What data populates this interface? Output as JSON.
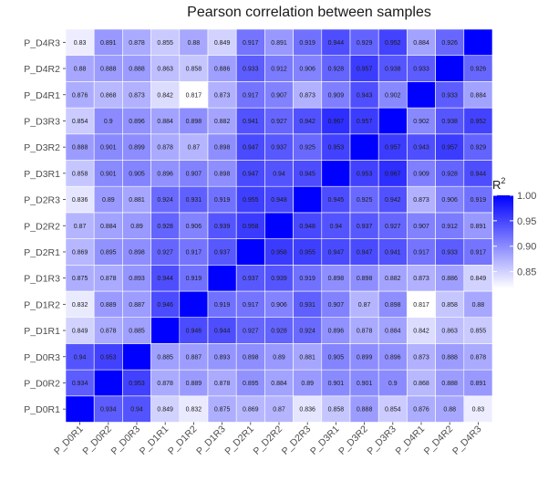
{
  "chart_data": {
    "type": "heatmap",
    "title": "Pearson correlation between samples",
    "samples": [
      "P_D0R1",
      "P_D0R2",
      "P_D0R3",
      "P_D1R1",
      "P_D1R2",
      "P_D1R3",
      "P_D2R1",
      "P_D2R2",
      "P_D2R3",
      "P_D3R1",
      "P_D3R2",
      "P_D3R3",
      "P_D4R1",
      "P_D4R2",
      "P_D4R3"
    ],
    "matrix": [
      [
        1,
        0.934,
        0.94,
        0.849,
        0.832,
        0.875,
        0.869,
        0.87,
        0.836,
        0.858,
        0.888,
        0.854,
        0.876,
        0.88,
        0.83
      ],
      [
        0.934,
        1,
        0.953,
        0.878,
        0.889,
        0.878,
        0.895,
        0.884,
        0.89,
        0.901,
        0.901,
        0.9,
        0.868,
        0.888,
        0.891
      ],
      [
        0.94,
        0.953,
        1,
        0.885,
        0.887,
        0.893,
        0.898,
        0.89,
        0.881,
        0.905,
        0.899,
        0.896,
        0.873,
        0.888,
        0.878
      ],
      [
        0.849,
        0.878,
        0.885,
        1,
        0.946,
        0.944,
        0.927,
        0.928,
        0.924,
        0.896,
        0.878,
        0.884,
        0.842,
        0.863,
        0.855
      ],
      [
        0.832,
        0.889,
        0.887,
        0.946,
        1,
        0.919,
        0.917,
        0.906,
        0.931,
        0.907,
        0.87,
        0.898,
        0.817,
        0.858,
        0.88
      ],
      [
        0.875,
        0.878,
        0.893,
        0.944,
        0.919,
        1,
        0.937,
        0.939,
        0.919,
        0.898,
        0.898,
        0.882,
        0.873,
        0.886,
        0.849
      ],
      [
        0.869,
        0.895,
        0.898,
        0.927,
        0.917,
        0.937,
        1,
        0.958,
        0.955,
        0.947,
        0.947,
        0.941,
        0.917,
        0.933,
        0.917
      ],
      [
        0.87,
        0.884,
        0.89,
        0.928,
        0.906,
        0.939,
        0.958,
        1,
        0.948,
        0.94,
        0.937,
        0.927,
        0.907,
        0.912,
        0.891
      ],
      [
        0.836,
        0.89,
        0.881,
        0.924,
        0.931,
        0.919,
        0.955,
        0.948,
        1,
        0.945,
        0.925,
        0.942,
        0.873,
        0.906,
        0.919
      ],
      [
        0.858,
        0.901,
        0.905,
        0.896,
        0.907,
        0.898,
        0.947,
        0.94,
        0.945,
        1,
        0.953,
        0.967,
        0.909,
        0.928,
        0.944
      ],
      [
        0.888,
        0.901,
        0.899,
        0.878,
        0.87,
        0.898,
        0.947,
        0.937,
        0.925,
        0.953,
        1,
        0.957,
        0.943,
        0.957,
        0.929
      ],
      [
        0.854,
        0.9,
        0.896,
        0.884,
        0.898,
        0.882,
        0.941,
        0.927,
        0.942,
        0.967,
        0.957,
        1,
        0.902,
        0.938,
        0.952
      ],
      [
        0.876,
        0.868,
        0.873,
        0.842,
        0.817,
        0.873,
        0.917,
        0.907,
        0.873,
        0.909,
        0.943,
        0.902,
        1,
        0.933,
        0.884
      ],
      [
        0.88,
        0.888,
        0.888,
        0.863,
        0.858,
        0.886,
        0.933,
        0.912,
        0.906,
        0.928,
        0.957,
        0.938,
        0.933,
        1,
        0.926
      ],
      [
        0.83,
        0.891,
        0.878,
        0.855,
        0.88,
        0.849,
        0.917,
        0.891,
        0.919,
        0.944,
        0.929,
        0.952,
        0.884,
        0.926,
        1
      ]
    ],
    "color_scale": {
      "min": 0.817,
      "max": 1.0,
      "low_color": "#ffffff",
      "high_color": "#0000ff"
    },
    "legend": {
      "title": "R",
      "title_superscript": "2",
      "ticks": [
        "1.00",
        "0.95",
        "0.90",
        "0.85"
      ],
      "tick_values": [
        1.0,
        0.95,
        0.9,
        0.85
      ],
      "placement": "right"
    }
  }
}
